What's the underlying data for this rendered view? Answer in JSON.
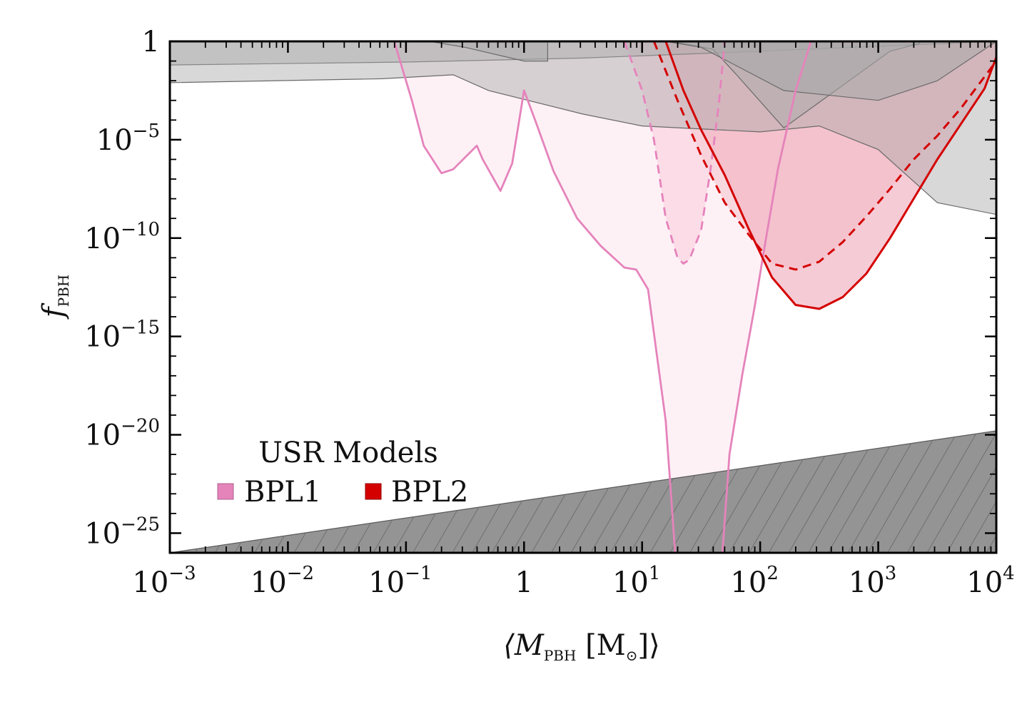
{
  "chart_data": {
    "type": "area",
    "title": "",
    "xlabel": {
      "pre": "⟨M",
      "sub": "PBH",
      "post": " [M",
      "sun": "⊙",
      "end": "]⟩"
    },
    "ylabel": {
      "main": "f",
      "sub": "PBH"
    },
    "xscale": "log",
    "yscale": "log",
    "xlim_exp": [
      -3,
      4
    ],
    "ylim_exp": [
      -26,
      0
    ],
    "x_ticks": [
      {
        "exp": -3,
        "base": "10",
        "sup": "−3"
      },
      {
        "exp": -2,
        "base": "10",
        "sup": "−2"
      },
      {
        "exp": -1,
        "base": "10",
        "sup": "−1"
      },
      {
        "exp": 0,
        "base": "1",
        "sup": ""
      },
      {
        "exp": 1,
        "base": "10",
        "sup": "1"
      },
      {
        "exp": 2,
        "base": "10",
        "sup": "2"
      },
      {
        "exp": 3,
        "base": "10",
        "sup": "3"
      },
      {
        "exp": 4,
        "base": "10",
        "sup": "4"
      }
    ],
    "y_ticks": [
      {
        "exp": 0,
        "base": "1",
        "sup": ""
      },
      {
        "exp": -5,
        "base": "10",
        "sup": "−5"
      },
      {
        "exp": -10,
        "base": "10",
        "sup": "−10"
      },
      {
        "exp": -15,
        "base": "10",
        "sup": "−15"
      },
      {
        "exp": -20,
        "base": "10",
        "sup": "−20"
      },
      {
        "exp": -25,
        "base": "10",
        "sup": "−25"
      }
    ],
    "legend": {
      "title": "USR Models",
      "placement": "bottom-left",
      "entries": [
        {
          "label": "BPL1",
          "color": "#e583bb"
        },
        {
          "label": "BPL2",
          "color": "#d40000"
        }
      ]
    },
    "constraints": [
      {
        "name": "c1",
        "color": "#a9a9a9",
        "opacity": 0.45,
        "points": [
          [
            -3,
            -1.2
          ],
          [
            -1,
            -1.05
          ],
          [
            0.5,
            -0.85
          ],
          [
            2,
            -0.5
          ],
          [
            4,
            0
          ]
        ]
      },
      {
        "name": "c2",
        "color": "#a9a9a9",
        "opacity": 0.45,
        "points": [
          [
            -3,
            -2.1
          ],
          [
            -1.2,
            -1.9
          ],
          [
            -0.6,
            -1.7
          ],
          [
            -0.3,
            -2.5
          ],
          [
            0.5,
            -3.7
          ],
          [
            1,
            -4.3
          ],
          [
            2,
            -4.6
          ],
          [
            2.5,
            -4.3
          ],
          [
            3,
            -5.5
          ],
          [
            3.5,
            -8.2
          ],
          [
            4,
            -8.8
          ]
        ]
      },
      {
        "name": "c3",
        "color": "#a9a9a9",
        "opacity": 0.45,
        "points": [
          [
            -0.8,
            0
          ],
          [
            -0.5,
            -0.3
          ],
          [
            0,
            -1.0
          ],
          [
            0.2,
            -1.0
          ]
        ]
      },
      {
        "name": "c4",
        "color": "#a9a9a9",
        "opacity": 0.45,
        "points": [
          [
            1.25,
            0
          ],
          [
            1.6,
            -0.4
          ],
          [
            1.8,
            -1.7
          ],
          [
            2.2,
            -4.4
          ],
          [
            3.1,
            -0.5
          ],
          [
            3.35,
            -0.1
          ]
        ]
      },
      {
        "name": "c5",
        "color": "#a9a9a9",
        "opacity": 0.55,
        "points": [
          [
            1.2,
            0
          ],
          [
            1.5,
            -0.3
          ],
          [
            2.2,
            -2.5
          ],
          [
            3,
            -3
          ],
          [
            3.5,
            -2
          ],
          [
            4,
            0
          ]
        ]
      }
    ],
    "hatched_region": {
      "name": "hatched",
      "color": "#8e8e8e",
      "points": [
        [
          -3,
          -26
        ],
        [
          4,
          -19.8
        ]
      ]
    },
    "series": [
      {
        "name": "BPL1",
        "style": "solid",
        "color": "#e583bb",
        "fill": "#fdecf3",
        "points": [
          [
            -1.1,
            0
          ],
          [
            -0.95,
            -3
          ],
          [
            -0.85,
            -5.3
          ],
          [
            -0.7,
            -6.7
          ],
          [
            -0.6,
            -6.5
          ],
          [
            -0.4,
            -5.3
          ],
          [
            -0.35,
            -6.0
          ],
          [
            -0.2,
            -7.6
          ],
          [
            -0.1,
            -6.2
          ],
          [
            0,
            -2.5
          ],
          [
            0.1,
            -4.1
          ],
          [
            0.25,
            -6.6
          ],
          [
            0.45,
            -9.0
          ],
          [
            0.65,
            -10.4
          ],
          [
            0.85,
            -11.5
          ],
          [
            0.95,
            -11.6
          ],
          [
            1.05,
            -12.6
          ],
          [
            1.2,
            -19.3
          ],
          [
            1.28,
            -26
          ],
          [
            1.68,
            -26
          ],
          [
            1.74,
            -21
          ],
          [
            1.85,
            -16.9
          ],
          [
            1.95,
            -13.6
          ],
          [
            2.05,
            -10.0
          ],
          [
            2.15,
            -6.5
          ],
          [
            2.3,
            -2.5
          ],
          [
            2.43,
            0
          ]
        ]
      },
      {
        "name": "BPL1",
        "style": "dashed",
        "color": "#e583bb",
        "fill": "#fad4e1",
        "points": [
          [
            0.85,
            0
          ],
          [
            1.0,
            -2.5
          ],
          [
            1.1,
            -5.0
          ],
          [
            1.2,
            -9.0
          ],
          [
            1.3,
            -11.0
          ],
          [
            1.35,
            -11.3
          ],
          [
            1.4,
            -11.1
          ],
          [
            1.5,
            -9.6
          ],
          [
            1.58,
            -6.5
          ],
          [
            1.65,
            -3.2
          ],
          [
            1.7,
            0
          ]
        ]
      },
      {
        "name": "BPL2",
        "style": "dashed",
        "color": "#d40000",
        "fill": "#f7ced6",
        "points": [
          [
            1.1,
            0
          ],
          [
            1.3,
            -3.0
          ],
          [
            1.5,
            -5.8
          ],
          [
            1.7,
            -8.2
          ],
          [
            1.9,
            -9.8
          ],
          [
            2.1,
            -11.3
          ],
          [
            2.3,
            -11.6
          ],
          [
            2.5,
            -11.2
          ],
          [
            2.7,
            -10.2
          ],
          [
            2.9,
            -8.9
          ],
          [
            3.1,
            -7.5
          ],
          [
            3.3,
            -6.0
          ],
          [
            3.5,
            -4.8
          ],
          [
            3.7,
            -3.4
          ],
          [
            3.9,
            -1.8
          ],
          [
            4,
            -1.0
          ]
        ]
      },
      {
        "name": "BPL2",
        "style": "solid",
        "color": "#d40000",
        "fill": "#f2bac7",
        "points": [
          [
            1.2,
            0
          ],
          [
            1.35,
            -2.5
          ],
          [
            1.5,
            -4.5
          ],
          [
            1.7,
            -6.8
          ],
          [
            1.9,
            -9.5
          ],
          [
            2.1,
            -12.0
          ],
          [
            2.3,
            -13.4
          ],
          [
            2.5,
            -13.6
          ],
          [
            2.7,
            -13.0
          ],
          [
            2.9,
            -11.8
          ],
          [
            3.1,
            -10.0
          ],
          [
            3.3,
            -8.0
          ],
          [
            3.5,
            -6.0
          ],
          [
            3.7,
            -4.2
          ],
          [
            3.9,
            -2.4
          ],
          [
            4.05,
            0
          ]
        ]
      }
    ]
  }
}
